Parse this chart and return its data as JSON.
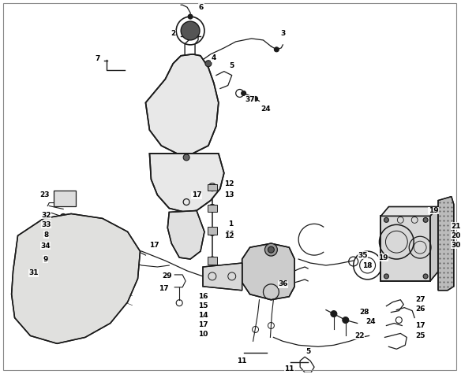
{
  "background_color": "#f5f5f0",
  "line_color": "#1a1a1a",
  "label_color": "#000000",
  "figsize": [
    5.84,
    4.75
  ],
  "dpi": 100,
  "border_color": "#888888",
  "lw_main": 1.3,
  "lw_thin": 0.8,
  "label_fontsize": 6.5
}
